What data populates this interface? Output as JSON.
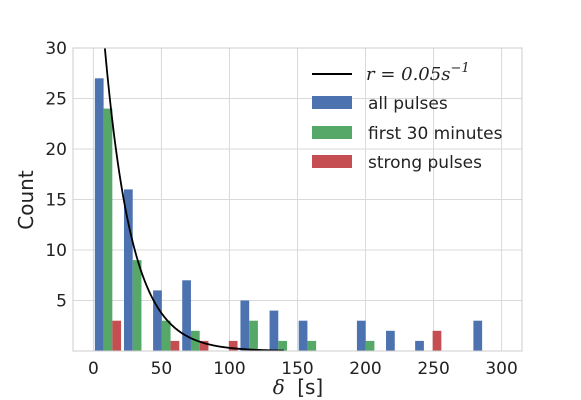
{
  "chart_data": {
    "type": "bar",
    "xlabel_symbol": "δ",
    "xlabel_unit": "[s]",
    "ylabel": "Count",
    "xlim": [
      -15,
      315
    ],
    "ylim": [
      0,
      30
    ],
    "xticks": [
      0,
      50,
      100,
      150,
      200,
      250,
      300
    ],
    "yticks": [
      5,
      10,
      15,
      20,
      25,
      30
    ],
    "grid": true,
    "legend_position": "top-right",
    "bin_width": 21.4,
    "bar_slot": 0.3,
    "bin_centers": [
      10.7,
      32.1,
      53.5,
      74.9,
      96.3,
      117.7,
      139.1,
      160.5,
      181.9,
      203.3,
      224.7,
      246.1,
      267.5,
      288.9
    ],
    "series": [
      {
        "name": "all pulses",
        "color": "#4c72b0",
        "values": [
          27,
          16,
          6,
          7,
          0,
          5,
          4,
          3,
          0,
          3,
          2,
          1,
          0,
          3
        ]
      },
      {
        "name": "first 30 minutes",
        "color": "#55a868",
        "values": [
          24,
          9,
          3,
          2,
          0,
          3,
          1,
          1,
          0,
          1,
          0,
          0,
          0,
          0
        ]
      },
      {
        "name": "strong pulses",
        "color": "#c44e52",
        "values": [
          3,
          0,
          1,
          1,
          1,
          0,
          0,
          0,
          0,
          0,
          0,
          2,
          0,
          0
        ]
      }
    ],
    "curve": {
      "label_prefix": "r = 0.05s",
      "label_superscript": "−1",
      "color": "#000000",
      "rate": 0.05,
      "amplitude": 45.7
    }
  }
}
